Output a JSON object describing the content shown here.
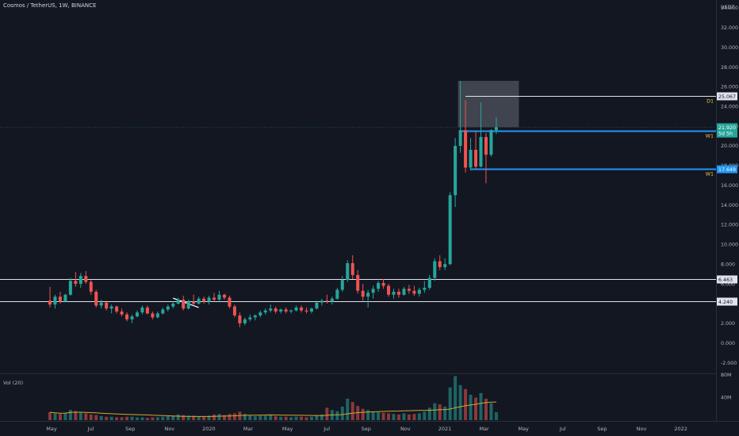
{
  "header": {
    "symbol": "Cosmos / TetherUS",
    "interval": "1W",
    "exchange": "BINANCE",
    "separator": ", "
  },
  "chart_data": {
    "type": "candlestick",
    "currency_label": "USDT",
    "x_ticks": [
      "May",
      "Jul",
      "Sep",
      "Nov",
      "2020",
      "Mar",
      "May",
      "Jul",
      "Sep",
      "Nov",
      "2021",
      "Mar",
      "May",
      "Jul",
      "Sep",
      "Nov",
      "2022"
    ],
    "y_ticks": [
      "-2.000",
      "0.000",
      "2.000",
      "4.000",
      "6.000",
      "8.000",
      "10.000",
      "12.000",
      "14.000",
      "16.000",
      "18.000",
      "20.000",
      "22.000",
      "24.000",
      "26.000",
      "28.000",
      "30.000",
      "32.000",
      "34.000"
    ],
    "y_tick_values": [
      -2,
      0,
      2,
      4,
      6,
      8,
      10,
      12,
      14,
      16,
      18,
      20,
      22,
      24,
      26,
      28,
      30,
      32,
      34
    ],
    "ylim": [
      -3,
      34.8
    ],
    "volume_ticks": [
      "40M",
      "80M"
    ],
    "volume_tick_values": [
      40,
      80
    ],
    "volume_ylim": [
      0,
      80
    ],
    "volume_label": "Vol (20)",
    "price_levels": [
      {
        "value": 25.067,
        "label": "25.067",
        "tag": "D1",
        "color": "#e0e3eb"
      },
      {
        "value": 21.569,
        "label": "21.569",
        "tag": "W1",
        "color": "#2196f3"
      },
      {
        "value": 17.649,
        "label": "17.649",
        "tag": "W1",
        "color": "#2196f3"
      },
      {
        "value": 6.463,
        "label": "6.463",
        "tag": "",
        "color": "#e0e3eb"
      },
      {
        "value": 4.24,
        "label": "4.240",
        "tag": "",
        "color": "#e0e3eb"
      }
    ],
    "current_price": {
      "value": 21.92,
      "label": "21.920",
      "countdown": "5d 5h"
    },
    "candles": [
      {
        "o": 4.3,
        "h": 5.7,
        "l": 3.6,
        "c": 3.9,
        "v": 14
      },
      {
        "o": 3.9,
        "h": 4.9,
        "l": 3.5,
        "c": 4.7,
        "v": 12
      },
      {
        "o": 4.7,
        "h": 5.2,
        "l": 4.0,
        "c": 4.2,
        "v": 11
      },
      {
        "o": 4.2,
        "h": 5.0,
        "l": 4.1,
        "c": 4.9,
        "v": 13
      },
      {
        "o": 4.9,
        "h": 6.6,
        "l": 4.8,
        "c": 6.3,
        "v": 18
      },
      {
        "o": 6.3,
        "h": 7.2,
        "l": 5.7,
        "c": 6.0,
        "v": 16
      },
      {
        "o": 6.0,
        "h": 7.1,
        "l": 5.6,
        "c": 6.8,
        "v": 14
      },
      {
        "o": 6.8,
        "h": 7.3,
        "l": 6.0,
        "c": 6.2,
        "v": 12
      },
      {
        "o": 6.2,
        "h": 6.4,
        "l": 4.9,
        "c": 5.2,
        "v": 10
      },
      {
        "o": 5.2,
        "h": 5.4,
        "l": 3.6,
        "c": 3.8,
        "v": 9
      },
      {
        "o": 3.8,
        "h": 4.4,
        "l": 3.5,
        "c": 4.1,
        "v": 7
      },
      {
        "o": 4.1,
        "h": 4.3,
        "l": 3.3,
        "c": 3.5,
        "v": 6
      },
      {
        "o": 3.5,
        "h": 3.9,
        "l": 3.0,
        "c": 3.7,
        "v": 6
      },
      {
        "o": 3.7,
        "h": 3.8,
        "l": 3.0,
        "c": 3.2,
        "v": 5
      },
      {
        "o": 3.2,
        "h": 3.5,
        "l": 2.7,
        "c": 2.9,
        "v": 5
      },
      {
        "o": 2.9,
        "h": 3.1,
        "l": 2.2,
        "c": 2.4,
        "v": 6
      },
      {
        "o": 2.4,
        "h": 2.9,
        "l": 2.0,
        "c": 2.7,
        "v": 6
      },
      {
        "o": 2.7,
        "h": 3.3,
        "l": 2.6,
        "c": 3.1,
        "v": 5
      },
      {
        "o": 3.1,
        "h": 3.8,
        "l": 2.9,
        "c": 3.6,
        "v": 5
      },
      {
        "o": 3.6,
        "h": 3.8,
        "l": 2.9,
        "c": 3.0,
        "v": 4
      },
      {
        "o": 3.0,
        "h": 3.2,
        "l": 2.4,
        "c": 2.6,
        "v": 5
      },
      {
        "o": 2.6,
        "h": 3.2,
        "l": 2.5,
        "c": 3.0,
        "v": 5
      },
      {
        "o": 3.0,
        "h": 3.6,
        "l": 2.9,
        "c": 3.4,
        "v": 6
      },
      {
        "o": 3.4,
        "h": 3.9,
        "l": 3.2,
        "c": 3.7,
        "v": 7
      },
      {
        "o": 3.7,
        "h": 4.2,
        "l": 3.5,
        "c": 4.0,
        "v": 8
      },
      {
        "o": 4.0,
        "h": 4.6,
        "l": 3.9,
        "c": 4.4,
        "v": 10
      },
      {
        "o": 4.4,
        "h": 4.8,
        "l": 3.3,
        "c": 3.5,
        "v": 9
      },
      {
        "o": 3.5,
        "h": 4.4,
        "l": 3.4,
        "c": 4.2,
        "v": 8
      },
      {
        "o": 4.2,
        "h": 4.9,
        "l": 3.8,
        "c": 4.0,
        "v": 8
      },
      {
        "o": 4.0,
        "h": 4.7,
        "l": 3.9,
        "c": 4.5,
        "v": 7
      },
      {
        "o": 4.5,
        "h": 4.7,
        "l": 4.0,
        "c": 4.2,
        "v": 7
      },
      {
        "o": 4.2,
        "h": 4.8,
        "l": 3.9,
        "c": 4.6,
        "v": 8
      },
      {
        "o": 4.6,
        "h": 5.1,
        "l": 4.2,
        "c": 4.4,
        "v": 10
      },
      {
        "o": 4.4,
        "h": 5.3,
        "l": 4.3,
        "c": 4.9,
        "v": 11
      },
      {
        "o": 4.9,
        "h": 5.0,
        "l": 4.4,
        "c": 4.6,
        "v": 9
      },
      {
        "o": 4.6,
        "h": 4.8,
        "l": 3.5,
        "c": 3.7,
        "v": 11
      },
      {
        "o": 3.7,
        "h": 3.9,
        "l": 2.6,
        "c": 2.8,
        "v": 12
      },
      {
        "o": 2.8,
        "h": 3.1,
        "l": 1.6,
        "c": 2.0,
        "v": 15
      },
      {
        "o": 2.0,
        "h": 2.6,
        "l": 1.8,
        "c": 2.4,
        "v": 11
      },
      {
        "o": 2.4,
        "h": 2.9,
        "l": 2.2,
        "c": 2.6,
        "v": 8
      },
      {
        "o": 2.6,
        "h": 2.9,
        "l": 2.3,
        "c": 2.8,
        "v": 7
      },
      {
        "o": 2.8,
        "h": 3.3,
        "l": 2.6,
        "c": 3.1,
        "v": 8
      },
      {
        "o": 3.1,
        "h": 3.5,
        "l": 2.9,
        "c": 3.3,
        "v": 8
      },
      {
        "o": 3.3,
        "h": 3.9,
        "l": 3.1,
        "c": 3.5,
        "v": 9
      },
      {
        "o": 3.5,
        "h": 3.7,
        "l": 3.0,
        "c": 3.2,
        "v": 7
      },
      {
        "o": 3.2,
        "h": 3.5,
        "l": 3.0,
        "c": 3.4,
        "v": 6
      },
      {
        "o": 3.4,
        "h": 3.6,
        "l": 3.0,
        "c": 3.2,
        "v": 6
      },
      {
        "o": 3.2,
        "h": 3.4,
        "l": 3.0,
        "c": 3.3,
        "v": 5
      },
      {
        "o": 3.3,
        "h": 3.8,
        "l": 3.2,
        "c": 3.6,
        "v": 6
      },
      {
        "o": 3.6,
        "h": 3.8,
        "l": 3.1,
        "c": 3.3,
        "v": 6
      },
      {
        "o": 3.3,
        "h": 3.6,
        "l": 3.0,
        "c": 3.2,
        "v": 5
      },
      {
        "o": 3.2,
        "h": 3.6,
        "l": 3.0,
        "c": 3.5,
        "v": 6
      },
      {
        "o": 3.5,
        "h": 4.3,
        "l": 3.4,
        "c": 4.1,
        "v": 9
      },
      {
        "o": 4.1,
        "h": 4.5,
        "l": 3.8,
        "c": 4.3,
        "v": 10
      },
      {
        "o": 4.3,
        "h": 4.9,
        "l": 4.0,
        "c": 4.2,
        "v": 22
      },
      {
        "o": 4.2,
        "h": 4.7,
        "l": 3.9,
        "c": 4.5,
        "v": 18
      },
      {
        "o": 4.5,
        "h": 5.6,
        "l": 4.4,
        "c": 5.4,
        "v": 16
      },
      {
        "o": 5.4,
        "h": 6.8,
        "l": 5.2,
        "c": 6.4,
        "v": 24
      },
      {
        "o": 6.4,
        "h": 8.4,
        "l": 6.2,
        "c": 8.1,
        "v": 38
      },
      {
        "o": 8.1,
        "h": 8.9,
        "l": 6.5,
        "c": 6.9,
        "v": 32
      },
      {
        "o": 6.9,
        "h": 7.4,
        "l": 5.0,
        "c": 5.3,
        "v": 25
      },
      {
        "o": 5.3,
        "h": 6.0,
        "l": 4.3,
        "c": 4.7,
        "v": 20
      },
      {
        "o": 4.7,
        "h": 5.4,
        "l": 3.6,
        "c": 5.1,
        "v": 18
      },
      {
        "o": 5.1,
        "h": 5.8,
        "l": 4.5,
        "c": 5.5,
        "v": 15
      },
      {
        "o": 5.5,
        "h": 6.3,
        "l": 5.2,
        "c": 6.1,
        "v": 14
      },
      {
        "o": 6.1,
        "h": 6.5,
        "l": 5.5,
        "c": 5.8,
        "v": 13
      },
      {
        "o": 5.8,
        "h": 6.0,
        "l": 4.7,
        "c": 4.9,
        "v": 12
      },
      {
        "o": 4.9,
        "h": 5.5,
        "l": 4.5,
        "c": 5.2,
        "v": 11
      },
      {
        "o": 5.2,
        "h": 5.5,
        "l": 4.6,
        "c": 4.9,
        "v": 10
      },
      {
        "o": 4.9,
        "h": 5.7,
        "l": 4.8,
        "c": 5.5,
        "v": 12
      },
      {
        "o": 5.5,
        "h": 5.9,
        "l": 5.0,
        "c": 5.3,
        "v": 10
      },
      {
        "o": 5.3,
        "h": 5.8,
        "l": 4.8,
        "c": 5.0,
        "v": 11
      },
      {
        "o": 5.0,
        "h": 5.6,
        "l": 4.7,
        "c": 5.4,
        "v": 12
      },
      {
        "o": 5.4,
        "h": 6.3,
        "l": 5.1,
        "c": 5.6,
        "v": 15
      },
      {
        "o": 5.6,
        "h": 6.9,
        "l": 5.4,
        "c": 6.6,
        "v": 22
      },
      {
        "o": 6.6,
        "h": 8.6,
        "l": 6.3,
        "c": 8.3,
        "v": 30
      },
      {
        "o": 8.3,
        "h": 8.9,
        "l": 7.4,
        "c": 7.7,
        "v": 28
      },
      {
        "o": 7.7,
        "h": 8.6,
        "l": 7.4,
        "c": 8.0,
        "v": 24
      },
      {
        "o": 8.0,
        "h": 15.3,
        "l": 7.9,
        "c": 15.0,
        "v": 58
      },
      {
        "o": 15.0,
        "h": 20.8,
        "l": 13.8,
        "c": 20.0,
        "v": 78
      },
      {
        "o": 20.0,
        "h": 26.6,
        "l": 19.3,
        "c": 21.6,
        "v": 62
      },
      {
        "o": 21.6,
        "h": 24.6,
        "l": 17.3,
        "c": 17.8,
        "v": 55
      },
      {
        "o": 17.8,
        "h": 20.8,
        "l": 17.5,
        "c": 19.6,
        "v": 45
      },
      {
        "o": 19.6,
        "h": 21.5,
        "l": 17.6,
        "c": 17.9,
        "v": 40
      },
      {
        "o": 17.9,
        "h": 24.4,
        "l": 17.8,
        "c": 20.9,
        "v": 48
      },
      {
        "o": 20.9,
        "h": 21.3,
        "l": 16.2,
        "c": 19.1,
        "v": 38
      },
      {
        "o": 19.1,
        "h": 21.7,
        "l": 18.9,
        "c": 21.6,
        "v": 30
      },
      {
        "o": 21.6,
        "h": 22.9,
        "l": 21.2,
        "c": 21.9,
        "v": 14
      }
    ]
  }
}
